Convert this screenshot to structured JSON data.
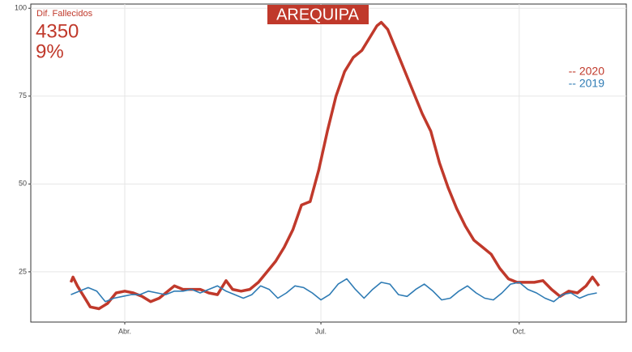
{
  "chart_data": {
    "type": "line",
    "title": "AREQUIPA",
    "annotations": [
      "Dif. Fallecidos",
      "4350",
      "9%"
    ],
    "xlim": [
      47.4,
      323.7
    ],
    "xticks": [
      {
        "value": 91,
        "label": "Abr."
      },
      {
        "value": 182,
        "label": "Jul."
      },
      {
        "value": 274,
        "label": "Oct."
      }
    ],
    "ylim": [
      10.7,
      101.2
    ],
    "yticks": [
      25,
      50,
      75,
      100
    ],
    "grid": true,
    "legend": "right",
    "series": [
      {
        "name": "-- 2020",
        "color": "#c0392b",
        "width": 3.5,
        "x": [
          66,
          67,
          69,
          71,
          73,
          75,
          79,
          83,
          87,
          91,
          95,
          99,
          103,
          107,
          111,
          114,
          118,
          122,
          126,
          130,
          134,
          136,
          138,
          141,
          145,
          149,
          153,
          157,
          161,
          165,
          169,
          173,
          177,
          181,
          185,
          189,
          193,
          197,
          201,
          205,
          208,
          210,
          213,
          217,
          221,
          225,
          229,
          233,
          237,
          241,
          245,
          249,
          253,
          257,
          261,
          265,
          269,
          273,
          277,
          281,
          285,
          289,
          293,
          297,
          301,
          305,
          308,
          311
        ],
        "values": [
          22,
          23.5,
          21,
          19,
          17,
          15,
          14.5,
          16,
          19,
          19.5,
          19,
          18,
          16.5,
          17.5,
          19.5,
          21,
          20,
          20,
          20,
          19,
          18.5,
          20.5,
          22.5,
          20,
          19.5,
          20,
          22,
          25,
          28,
          32,
          37,
          44,
          45,
          54,
          65,
          75,
          82,
          86,
          88,
          92,
          95,
          96,
          94,
          88,
          82,
          76,
          70,
          65,
          56,
          49,
          43,
          38,
          34,
          32,
          30,
          26,
          23,
          22,
          22,
          22,
          22.5,
          20,
          18,
          19.5,
          19,
          21,
          23.5,
          21
        ]
      },
      {
        "name": "-- 2019",
        "color": "#2e7bb4",
        "width": 1.6,
        "x": [
          66,
          70,
          74,
          78,
          82,
          86,
          90,
          94,
          98,
          102,
          106,
          110,
          114,
          118,
          122,
          126,
          130,
          134,
          138,
          142,
          146,
          150,
          154,
          158,
          162,
          166,
          170,
          174,
          178,
          182,
          186,
          190,
          194,
          198,
          202,
          206,
          210,
          214,
          218,
          222,
          226,
          230,
          234,
          238,
          242,
          246,
          250,
          254,
          258,
          262,
          266,
          270,
          274,
          278,
          282,
          286,
          290,
          294,
          298,
          302,
          306,
          310
        ],
        "values": [
          18.5,
          19.5,
          20.5,
          19.5,
          16.5,
          17.5,
          18,
          18.5,
          18.5,
          19.5,
          19,
          18.5,
          19.5,
          19.5,
          20,
          19,
          20,
          21,
          19.5,
          18.5,
          17.5,
          18.5,
          21,
          20,
          17.5,
          19,
          21,
          20.5,
          19,
          17,
          18.5,
          21.5,
          23,
          20,
          17.5,
          20,
          22,
          21.5,
          18.5,
          18,
          20,
          21.5,
          19.5,
          17,
          17.5,
          19.5,
          21,
          19,
          17.5,
          17,
          19,
          21.5,
          22,
          20,
          19,
          17.5,
          16.5,
          18.5,
          19,
          17.5,
          18.5,
          19
        ]
      }
    ]
  }
}
